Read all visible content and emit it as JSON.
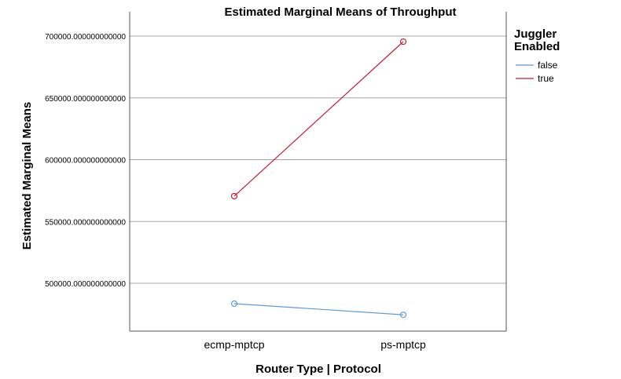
{
  "chart_data": {
    "type": "line",
    "title": "Estimated Marginal Means of Throughput",
    "xlabel": "Router Type | Protocol",
    "ylabel": "Estimated Marginal Means",
    "categories": [
      "ecmp-mptcp",
      "ps-mptcp"
    ],
    "ylim": [
      460000,
      720000
    ],
    "yticks": [
      500000,
      550000,
      600000,
      650000,
      700000
    ],
    "ytick_labels": [
      "500000.000000000000",
      "550000.000000000000",
      "600000.000000000000",
      "650000.000000000000",
      "700000.000000000000"
    ],
    "grid": true,
    "legend": {
      "title_lines": [
        "Juggler",
        "Enabled"
      ],
      "placement": "right"
    },
    "series": [
      {
        "name": "false",
        "color": "#5b9bd5",
        "values": [
          483500,
          474500
        ]
      },
      {
        "name": "true",
        "color": "#c41e3a",
        "values": [
          570500,
          695500
        ]
      }
    ]
  }
}
